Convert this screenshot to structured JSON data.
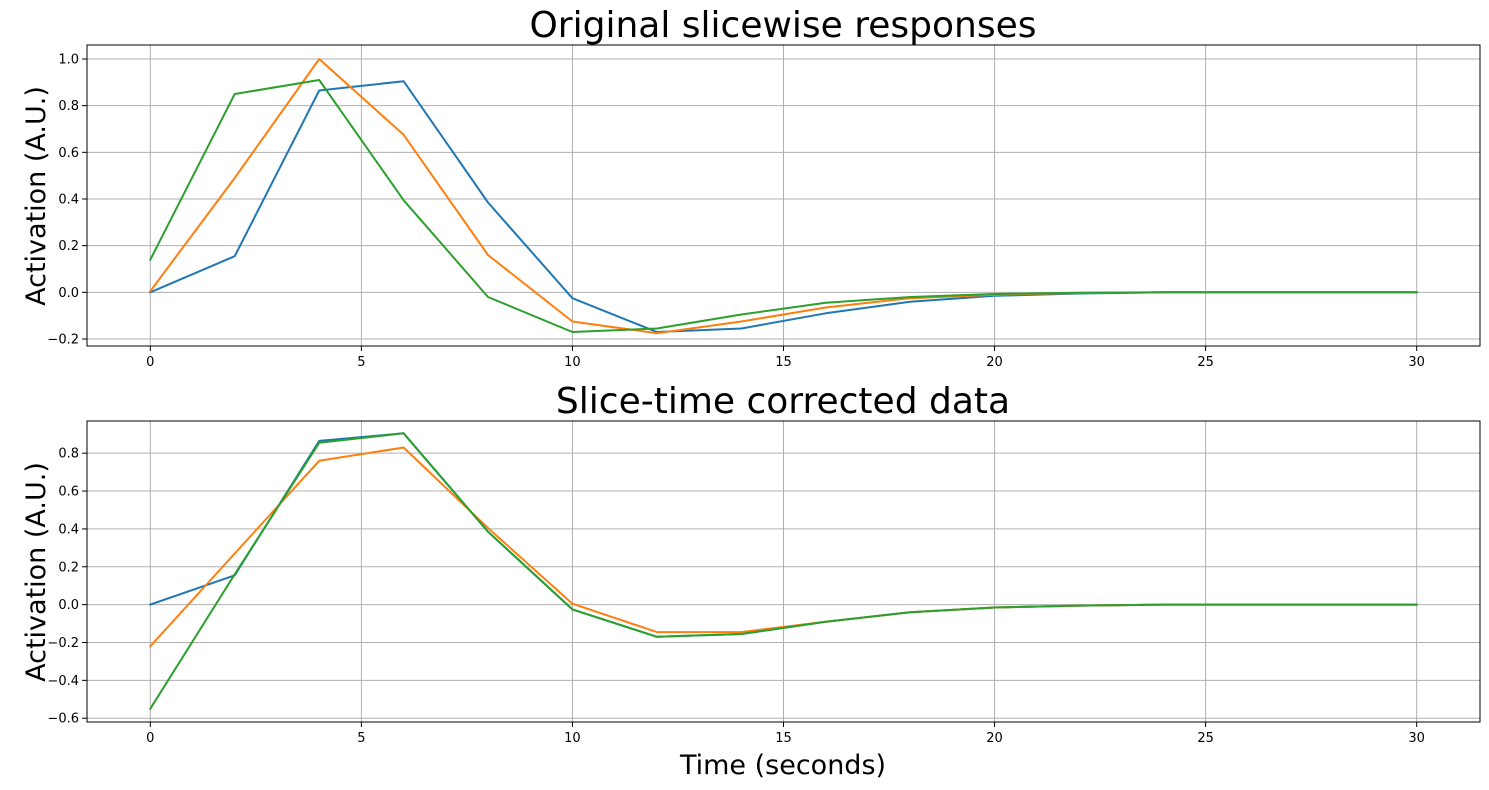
{
  "chart_data": [
    {
      "type": "line",
      "title": "Original slicewise responses",
      "xlabel": "",
      "ylabel": "Activation (A.U.)",
      "xlim": [
        -1.5,
        31.5
      ],
      "ylim": [
        -0.23,
        1.06
      ],
      "xticks": [
        0,
        5,
        10,
        15,
        20,
        25,
        30
      ],
      "xtick_labels": [
        "0",
        "5",
        "10",
        "15",
        "20",
        "25",
        "30"
      ],
      "yticks": [
        -0.2,
        0.0,
        0.2,
        0.4,
        0.6,
        0.8,
        1.0
      ],
      "ytick_labels": [
        "−0.2",
        "0.0",
        "0.2",
        "0.4",
        "0.6",
        "0.8",
        "1.0"
      ],
      "grid": true,
      "x": [
        0,
        2,
        4,
        6,
        8,
        10,
        12,
        14,
        16,
        18,
        20,
        22,
        24,
        26,
        28,
        30
      ],
      "series": [
        {
          "color": "#1f77b4",
          "values": [
            0.0,
            0.155,
            0.865,
            0.905,
            0.385,
            -0.025,
            -0.17,
            -0.155,
            -0.09,
            -0.04,
            -0.015,
            -0.005,
            0.0,
            0.0,
            0.0,
            0.0
          ]
        },
        {
          "color": "#ff7f0e",
          "values": [
            0.005,
            0.49,
            1.0,
            0.675,
            0.16,
            -0.125,
            -0.175,
            -0.125,
            -0.065,
            -0.025,
            -0.01,
            -0.003,
            0.0,
            0.0,
            0.0,
            0.0
          ]
        },
        {
          "color": "#2ca02c",
          "values": [
            0.14,
            0.85,
            0.91,
            0.395,
            -0.02,
            -0.17,
            -0.155,
            -0.095,
            -0.045,
            -0.02,
            -0.007,
            -0.002,
            0.0,
            0.0,
            0.0,
            0.0
          ]
        }
      ]
    },
    {
      "type": "line",
      "title": "Slice-time corrected data",
      "xlabel": "Time (seconds)",
      "ylabel": "Activation (A.U.)",
      "xlim": [
        -1.5,
        31.5
      ],
      "ylim": [
        -0.62,
        0.97
      ],
      "xticks": [
        0,
        5,
        10,
        15,
        20,
        25,
        30
      ],
      "xtick_labels": [
        "0",
        "5",
        "10",
        "15",
        "20",
        "25",
        "30"
      ],
      "yticks": [
        -0.6,
        -0.4,
        -0.2,
        0.0,
        0.2,
        0.4,
        0.6,
        0.8
      ],
      "ytick_labels": [
        "−0.6",
        "−0.4",
        "−0.2",
        "0.0",
        "0.2",
        "0.4",
        "0.6",
        "0.8"
      ],
      "grid": true,
      "x": [
        0,
        2,
        4,
        6,
        8,
        10,
        12,
        14,
        16,
        18,
        20,
        22,
        24,
        26,
        28,
        30
      ],
      "series": [
        {
          "color": "#1f77b4",
          "values": [
            0.0,
            0.155,
            0.865,
            0.905,
            0.385,
            -0.025,
            -0.17,
            -0.155,
            -0.09,
            -0.04,
            -0.015,
            -0.005,
            0.0,
            0.0,
            0.0,
            0.0
          ]
        },
        {
          "color": "#ff7f0e",
          "values": [
            -0.22,
            0.27,
            0.76,
            0.83,
            0.405,
            0.005,
            -0.145,
            -0.145,
            -0.09,
            -0.04,
            -0.015,
            -0.005,
            0.0,
            0.0,
            0.0,
            0.0
          ]
        },
        {
          "color": "#2ca02c",
          "values": [
            -0.55,
            0.16,
            0.855,
            0.905,
            0.385,
            -0.025,
            -0.17,
            -0.155,
            -0.09,
            -0.04,
            -0.015,
            -0.005,
            0.0,
            0.0,
            0.0,
            0.0
          ]
        }
      ]
    }
  ]
}
